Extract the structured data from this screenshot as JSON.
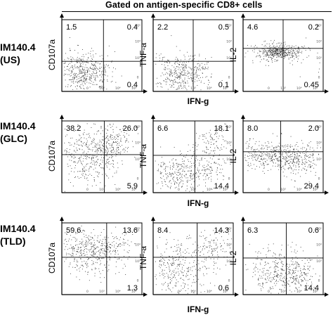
{
  "header": {
    "title": "Gated on antigen-specific CD8+ cells"
  },
  "row_labels": [
    {
      "line1": "IM140.4",
      "line2": "(US)"
    },
    {
      "line1": "IM140.4",
      "line2": "(GLC)"
    },
    {
      "line1": "IM140.4",
      "line2": "(TLD)"
    }
  ],
  "x_axis_label": "IFN-g",
  "y_axis_labels": [
    "CD107a",
    "TNF-a",
    "IL-2"
  ],
  "chart_data": {
    "type": "scatter",
    "x_axis_label": "IFN-g",
    "plots": [
      {
        "row": "IM140.4 (US)",
        "y_axis": "CD107a",
        "quadrants": {
          "upper_left": "1.5",
          "upper_right": "0.4",
          "lower_right": "0.4"
        }
      },
      {
        "row": "IM140.4 (US)",
        "y_axis": "TNF-a",
        "quadrants": {
          "upper_left": "2.2",
          "upper_right": "0.5",
          "lower_right": "0.1"
        }
      },
      {
        "row": "IM140.4 (US)",
        "y_axis": "IL-2",
        "quadrants": {
          "upper_left": "4.6",
          "upper_right": "0.2",
          "lower_right": "0.45"
        }
      },
      {
        "row": "IM140.4 (GLC)",
        "y_axis": "CD107a",
        "quadrants": {
          "upper_left": "38.2",
          "upper_right": "26.0",
          "lower_right": "5.9"
        }
      },
      {
        "row": "IM140.4 (GLC)",
        "y_axis": "TNF-a",
        "quadrants": {
          "upper_left": "6.6",
          "upper_right": "18.1",
          "lower_right": "14.4"
        }
      },
      {
        "row": "IM140.4 (GLC)",
        "y_axis": "IL-2",
        "quadrants": {
          "upper_left": "8.0",
          "upper_right": "2.0",
          "lower_right": "29.4"
        }
      },
      {
        "row": "IM140.4 (TLD)",
        "y_axis": "CD107a",
        "quadrants": {
          "upper_left": "59.6",
          "upper_right": "13.6",
          "lower_right": "1.3"
        }
      },
      {
        "row": "IM140.4 (TLD)",
        "y_axis": "TNF-a",
        "quadrants": {
          "upper_left": "8.4",
          "upper_right": "14.3",
          "lower_right": "0.6"
        }
      },
      {
        "row": "IM140.4 (TLD)",
        "y_axis": "IL-2",
        "quadrants": {
          "upper_left": "6.3",
          "upper_right": "0.6",
          "lower_right": "14.4"
        }
      }
    ],
    "tick_labels": {
      "x": [
        "0",
        "10³",
        "10⁴",
        "10⁵"
      ],
      "y": [
        "0",
        "10³",
        "10⁴",
        "10⁵"
      ]
    }
  },
  "colors": {
    "ink": "#000000",
    "dots": "#333333",
    "background": "#ffffff"
  }
}
